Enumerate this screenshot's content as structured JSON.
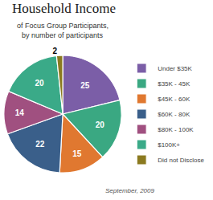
{
  "chart_data": {
    "type": "pie",
    "title": "Household Income",
    "subtitle": [
      "of Focus Group Participants,",
      "by number of participants"
    ],
    "annotations": [
      "September, 2009"
    ],
    "categories": [
      "Under $35K",
      "$35K - 45K",
      "$45K - 60K",
      "$60K - 80K",
      "$80K - 100K",
      "$100K+",
      "Did not Disclose"
    ],
    "values": [
      25,
      20,
      15,
      22,
      14,
      20,
      2
    ],
    "colors": [
      "#7B5EA7",
      "#3AA882",
      "#E07830",
      "#3A5F8A",
      "#A05080",
      "#3AAA88",
      "#8B7A20"
    ],
    "data_labels": true,
    "legend": "right"
  }
}
